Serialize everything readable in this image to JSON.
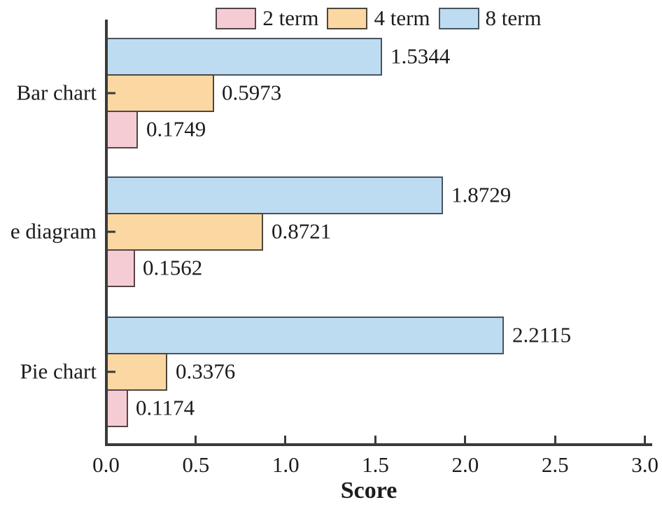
{
  "chart_data": {
    "type": "bar",
    "orientation": "horizontal",
    "title": "",
    "xlabel": "Score",
    "ylabel": "",
    "categories": [
      "Bar chart",
      "e diagram",
      "Pie chart"
    ],
    "series": [
      {
        "name": "2 term",
        "color": "#f6ccd4",
        "border_color": "#524548",
        "values": [
          0.1749,
          0.1562,
          0.1174
        ]
      },
      {
        "name": "4 term",
        "color": "#fbd8a2",
        "border_color": "#4e463c",
        "values": [
          0.5973,
          0.8721,
          0.3376
        ]
      },
      {
        "name": "8 term",
        "color": "#bedcf1",
        "border_color": "#47555f",
        "values": [
          1.5344,
          1.8729,
          2.2115
        ]
      }
    ],
    "bar_order_top_to_bottom": [
      "8 term",
      "4 term",
      "2 term"
    ],
    "value_label_decimals": 4,
    "x_ticks": [
      0.0,
      0.5,
      1.0,
      1.5,
      2.0,
      2.5,
      3.0
    ],
    "x_tick_labels": [
      "0.0",
      "0.5",
      "1.0",
      "1.5",
      "2.0",
      "2.5",
      "3.0"
    ],
    "xlim": [
      0.0,
      3.0
    ],
    "grid": false,
    "legend_position": "top",
    "axis_color": "#3a3a3a",
    "text_color": "#1c1c1c",
    "background": "#ffffff"
  }
}
